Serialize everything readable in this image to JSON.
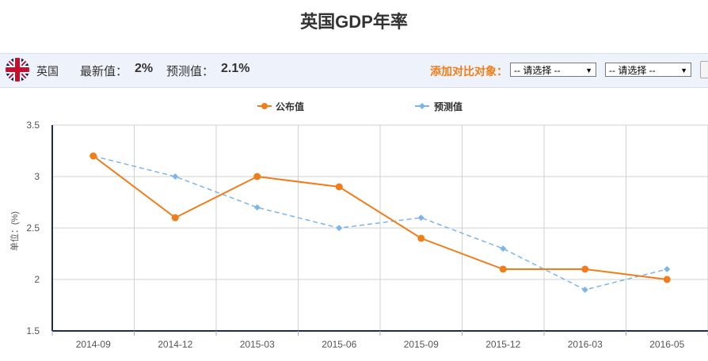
{
  "page_title": "英国GDP年率",
  "info": {
    "country": "英国",
    "latest_label": "最新值：",
    "latest_value": "2%",
    "forecast_label": "预测值：",
    "forecast_value": "2.1%",
    "compare_label": "添加对比对象：",
    "select1": "-- 请选择 --",
    "select2": "-- 请选择 --"
  },
  "icons": {
    "flag": "uk-flag-icon",
    "dropdown": "triangle-down-icon"
  },
  "colors": {
    "published": "#f07d1a",
    "forecast": "#7cb5ec",
    "bar_bg": "#eef2fa"
  },
  "chart_data": {
    "type": "line",
    "categories": [
      "2014-09",
      "2014-12",
      "2015-03",
      "2015-06",
      "2015-09",
      "2015-12",
      "2016-03",
      "2016-05"
    ],
    "ylabel": "单位：(%)",
    "ylim": [
      1.5,
      3.5
    ],
    "yticks": [
      "1.5",
      "2",
      "2.5",
      "3",
      "3.5"
    ],
    "grid": true,
    "legend_position": "top-center",
    "series": [
      {
        "name": "公布值",
        "color": "#f07d1a",
        "style": "solid",
        "marker": "circle",
        "values": [
          3.2,
          2.6,
          3.0,
          2.9,
          2.4,
          2.1,
          2.1,
          2.0
        ]
      },
      {
        "name": "预测值",
        "color": "#7cb5ec",
        "style": "dashed",
        "marker": "diamond",
        "values": [
          3.2,
          3.0,
          2.7,
          2.5,
          2.6,
          2.3,
          1.9,
          2.1
        ]
      }
    ]
  }
}
